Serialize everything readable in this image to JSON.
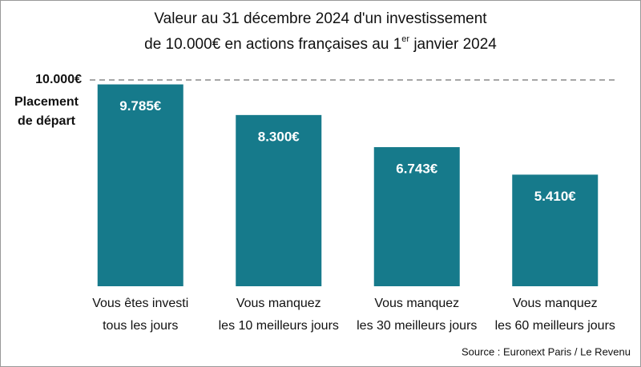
{
  "chart_data": {
    "type": "bar",
    "title": [
      "Valeur au 31 décembre 2024 d'un investissement",
      "de 10.000€  en actions françaises au 1",
      "er",
      " janvier 2024"
    ],
    "categories": [
      [
        "Vous êtes investi",
        "tous les jours"
      ],
      [
        "Vous manquez",
        "les 10 meilleurs jours"
      ],
      [
        "Vous manquez",
        "les 30 meilleurs jours"
      ],
      [
        "Vous manquez",
        "les 60 meilleurs jours"
      ]
    ],
    "values": [
      9785,
      8300,
      6743,
      5410
    ],
    "value_labels": [
      "9.785€",
      "8.300€",
      "6.743€",
      "5.410€"
    ],
    "color": "#167a8b",
    "ylim": [
      0,
      10000
    ],
    "reference_line": {
      "value": 10000,
      "label": "10.000€",
      "annotation": [
        "Placement",
        "de départ"
      ]
    },
    "source": "Source : Euronext Paris / Le Revenu"
  }
}
